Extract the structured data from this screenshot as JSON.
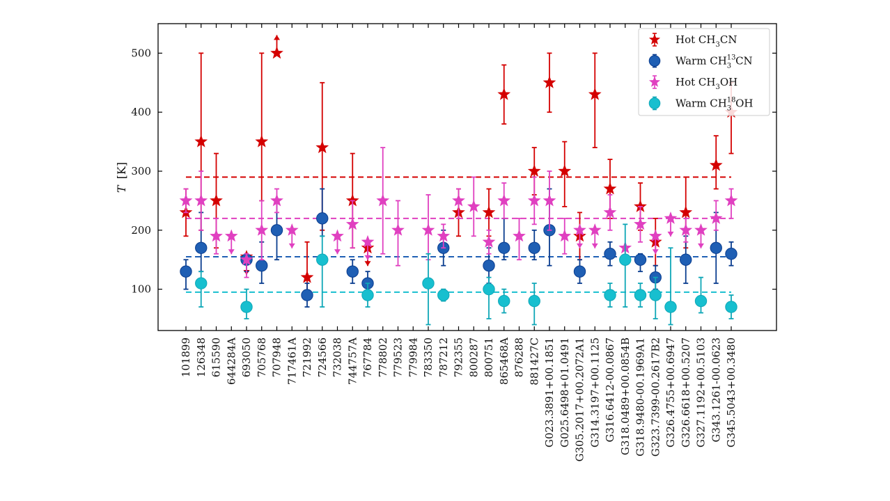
{
  "chart_data": {
    "type": "scatter",
    "ylabel_symbol": "T",
    "ylabel_unit": "[K]",
    "ylim": [
      30,
      550
    ],
    "yticks": [
      100,
      200,
      300,
      400,
      500
    ],
    "categories": [
      "101899",
      "126348",
      "615590",
      "644284A",
      "693050",
      "705768",
      "707948",
      "717461A",
      "721992",
      "724566",
      "732038",
      "744757A",
      "767784",
      "778802",
      "779523",
      "779984",
      "783350",
      "787212",
      "792355",
      "800287",
      "800751",
      "865468A",
      "876288",
      "881427C",
      "G023.3891+00.1851",
      "G025.6498+01.0491",
      "G305.2017+00.2072A1",
      "G314.3197+00.1125",
      "G316.6412-00.0867",
      "G318.0489+00.0854B",
      "G318.9480-00.1969A1",
      "G323.7399-00.2617B2",
      "G326.4755+00.6947",
      "G326.6618+00.5207",
      "G327.1192+00.5103",
      "G343.1261-00.0623",
      "G345.5043+00.3480"
    ],
    "legend": [
      {
        "key": "hot_ch3cn",
        "pre": "Hot CH",
        "sub": "3",
        "sup": "",
        "post": "CN"
      },
      {
        "key": "warm_ch3_13cn",
        "pre": "Warm CH",
        "sub": "3",
        "sup": "13",
        "post": "CN"
      },
      {
        "key": "hot_ch3oh",
        "pre": "Hot CH",
        "sub": "3",
        "sup": "",
        "post": "OH"
      },
      {
        "key": "warm_ch3_18oh",
        "pre": "Warm CH",
        "sub": "3",
        "sup": "18",
        "post": "OH"
      }
    ],
    "series": [
      {
        "key": "hot_ch3cn",
        "name": "Hot CH3CN",
        "color": "#d40000",
        "marker": "star",
        "reference": 290,
        "points": [
          {
            "i": 0,
            "y": 230,
            "lo": 190,
            "hi": 270
          },
          {
            "i": 1,
            "y": 350,
            "lo": 200,
            "hi": 500
          },
          {
            "i": 2,
            "y": 250,
            "lo": 170,
            "hi": 330
          },
          {
            "i": 4,
            "y": 155,
            "limit": "upper"
          },
          {
            "i": 5,
            "y": 350,
            "lo": 250,
            "hi": 500
          },
          {
            "i": 6,
            "y": 500,
            "limit": "lower"
          },
          {
            "i": 8,
            "y": 120,
            "lo": 90,
            "hi": 180
          },
          {
            "i": 9,
            "y": 340,
            "lo": 200,
            "hi": 450
          },
          {
            "i": 11,
            "y": 250,
            "lo": 170,
            "hi": 330
          },
          {
            "i": 12,
            "y": 170,
            "limit": "upper"
          },
          {
            "i": 18,
            "y": 230,
            "lo": 190,
            "hi": 270
          },
          {
            "i": 20,
            "y": 230,
            "lo": 190,
            "hi": 270
          },
          {
            "i": 21,
            "y": 430,
            "lo": 380,
            "hi": 480
          },
          {
            "i": 23,
            "y": 300,
            "lo": 260,
            "hi": 340
          },
          {
            "i": 24,
            "y": 450,
            "lo": 400,
            "hi": 500
          },
          {
            "i": 25,
            "y": 300,
            "lo": 240,
            "hi": 350
          },
          {
            "i": 26,
            "y": 190,
            "lo": 150,
            "hi": 230
          },
          {
            "i": 27,
            "y": 430,
            "lo": 340,
            "hi": 500
          },
          {
            "i": 28,
            "y": 270,
            "lo": 220,
            "hi": 320
          },
          {
            "i": 30,
            "y": 240,
            "lo": 200,
            "hi": 280
          },
          {
            "i": 31,
            "y": 180,
            "lo": 140,
            "hi": 220
          },
          {
            "i": 33,
            "y": 230,
            "lo": 170,
            "hi": 290
          },
          {
            "i": 35,
            "y": 310,
            "lo": 270,
            "hi": 360
          },
          {
            "i": 36,
            "y": 400,
            "lo": 330,
            "hi": 450
          }
        ]
      },
      {
        "key": "warm_ch3_13cn",
        "name": "Warm CH3-13CN",
        "color": "#1f5fb4",
        "edge": "#0a3d8f",
        "marker": "circle",
        "reference": 155,
        "points": [
          {
            "i": 0,
            "y": 130,
            "lo": 100,
            "hi": 150
          },
          {
            "i": 1,
            "y": 170,
            "lo": 130,
            "hi": 230
          },
          {
            "i": 4,
            "y": 150,
            "lo": 130,
            "hi": 160
          },
          {
            "i": 5,
            "y": 140,
            "lo": 110,
            "hi": 180
          },
          {
            "i": 6,
            "y": 200,
            "lo": 150,
            "hi": 250
          },
          {
            "i": 8,
            "y": 90,
            "lo": 70,
            "hi": 110
          },
          {
            "i": 9,
            "y": 220,
            "lo": 190,
            "hi": 270
          },
          {
            "i": 11,
            "y": 130,
            "lo": 110,
            "hi": 150
          },
          {
            "i": 12,
            "y": 110,
            "lo": 90,
            "hi": 130
          },
          {
            "i": 17,
            "y": 170,
            "lo": 140,
            "hi": 200
          },
          {
            "i": 20,
            "y": 140,
            "lo": 110,
            "hi": 170
          },
          {
            "i": 21,
            "y": 170,
            "lo": 150,
            "hi": 220
          },
          {
            "i": 23,
            "y": 170,
            "lo": 150,
            "hi": 200
          },
          {
            "i": 24,
            "y": 200,
            "lo": 140,
            "hi": 270
          },
          {
            "i": 26,
            "y": 130,
            "lo": 110,
            "hi": 150
          },
          {
            "i": 28,
            "y": 160,
            "lo": 140,
            "hi": 180
          },
          {
            "i": 30,
            "y": 150,
            "lo": 130,
            "hi": 160
          },
          {
            "i": 31,
            "y": 120,
            "lo": 100,
            "hi": 140
          },
          {
            "i": 33,
            "y": 150,
            "lo": 110,
            "hi": 190
          },
          {
            "i": 35,
            "y": 170,
            "lo": 110,
            "hi": 230
          },
          {
            "i": 36,
            "y": 160,
            "lo": 140,
            "hi": 180
          }
        ]
      },
      {
        "key": "hot_ch3oh",
        "name": "Hot CH3OH",
        "color": "#e040c0",
        "marker": "star",
        "reference": 220,
        "points": [
          {
            "i": 0,
            "y": 250,
            "lo": 230,
            "hi": 270
          },
          {
            "i": 1,
            "y": 250,
            "lo": 200,
            "hi": 300
          },
          {
            "i": 2,
            "y": 190,
            "lo": 160,
            "hi": 220
          },
          {
            "i": 3,
            "y": 190,
            "limit": "upper"
          },
          {
            "i": 4,
            "y": 150,
            "lo": 120,
            "hi": 160
          },
          {
            "i": 5,
            "y": 200,
            "lo": 150,
            "hi": 250
          },
          {
            "i": 6,
            "y": 250,
            "lo": 230,
            "hi": 270
          },
          {
            "i": 7,
            "y": 200,
            "limit": "upper"
          },
          {
            "i": 10,
            "y": 190,
            "limit": "upper"
          },
          {
            "i": 11,
            "y": 210,
            "lo": 170,
            "hi": 250
          },
          {
            "i": 12,
            "y": 180,
            "limit": "upper"
          },
          {
            "i": 13,
            "y": 250,
            "lo": 160,
            "hi": 340
          },
          {
            "i": 14,
            "y": 200,
            "lo": 140,
            "hi": 250
          },
          {
            "i": 16,
            "y": 200,
            "lo": 150,
            "hi": 260
          },
          {
            "i": 17,
            "y": 190,
            "lo": 170,
            "hi": 210
          },
          {
            "i": 18,
            "y": 250,
            "lo": 220,
            "hi": 270
          },
          {
            "i": 19,
            "y": 240,
            "lo": 190,
            "hi": 290
          },
          {
            "i": 20,
            "y": 180,
            "lo": 160,
            "hi": 200
          },
          {
            "i": 21,
            "y": 250,
            "lo": 220,
            "hi": 280
          },
          {
            "i": 22,
            "y": 190,
            "lo": 150,
            "hi": 220
          },
          {
            "i": 23,
            "y": 250,
            "lo": 210,
            "hi": 290
          },
          {
            "i": 24,
            "y": 250,
            "lo": 200,
            "hi": 300
          },
          {
            "i": 25,
            "y": 190,
            "lo": 160,
            "hi": 220
          },
          {
            "i": 26,
            "y": 200,
            "limit": "upper"
          },
          {
            "i": 27,
            "y": 200,
            "limit": "upper"
          },
          {
            "i": 28,
            "y": 230,
            "lo": 200,
            "hi": 260
          },
          {
            "i": 29,
            "y": 170,
            "limit": "upper"
          },
          {
            "i": 30,
            "y": 210,
            "lo": 180,
            "hi": 240
          },
          {
            "i": 31,
            "y": 190,
            "limit": "upper"
          },
          {
            "i": 32,
            "y": 220,
            "limit": "upper"
          },
          {
            "i": 33,
            "y": 200,
            "lo": 180,
            "hi": 220
          },
          {
            "i": 34,
            "y": 200,
            "limit": "upper"
          },
          {
            "i": 35,
            "y": 220,
            "lo": 200,
            "hi": 250
          },
          {
            "i": 36,
            "y": 250,
            "lo": 220,
            "hi": 270
          }
        ]
      },
      {
        "key": "warm_ch3_18oh",
        "name": "Warm CH3-18OH",
        "color": "#17bfcf",
        "edge": "#0fa7b7",
        "marker": "circle",
        "reference": 95,
        "points": [
          {
            "i": 1,
            "y": 110,
            "lo": 70,
            "hi": 130
          },
          {
            "i": 4,
            "y": 70,
            "lo": 50,
            "hi": 100
          },
          {
            "i": 9,
            "y": 150,
            "lo": 70,
            "hi": 190
          },
          {
            "i": 12,
            "y": 90,
            "lo": 70,
            "hi": 110
          },
          {
            "i": 16,
            "y": 110,
            "lo": 40,
            "hi": 160
          },
          {
            "i": 17,
            "y": 90,
            "lo": 80,
            "hi": 100
          },
          {
            "i": 20,
            "y": 100,
            "lo": 50,
            "hi": 120
          },
          {
            "i": 21,
            "y": 80,
            "lo": 60,
            "hi": 100
          },
          {
            "i": 23,
            "y": 80,
            "lo": 40,
            "hi": 110
          },
          {
            "i": 28,
            "y": 90,
            "lo": 70,
            "hi": 110
          },
          {
            "i": 29,
            "y": 150,
            "lo": 70,
            "hi": 210
          },
          {
            "i": 30,
            "y": 90,
            "lo": 70,
            "hi": 110
          },
          {
            "i": 31,
            "y": 90,
            "lo": 50,
            "hi": 120
          },
          {
            "i": 32,
            "y": 70,
            "lo": 40,
            "hi": 170
          },
          {
            "i": 34,
            "y": 80,
            "lo": 60,
            "hi": 120
          },
          {
            "i": 36,
            "y": 70,
            "lo": 50,
            "hi": 90
          }
        ]
      }
    ]
  }
}
